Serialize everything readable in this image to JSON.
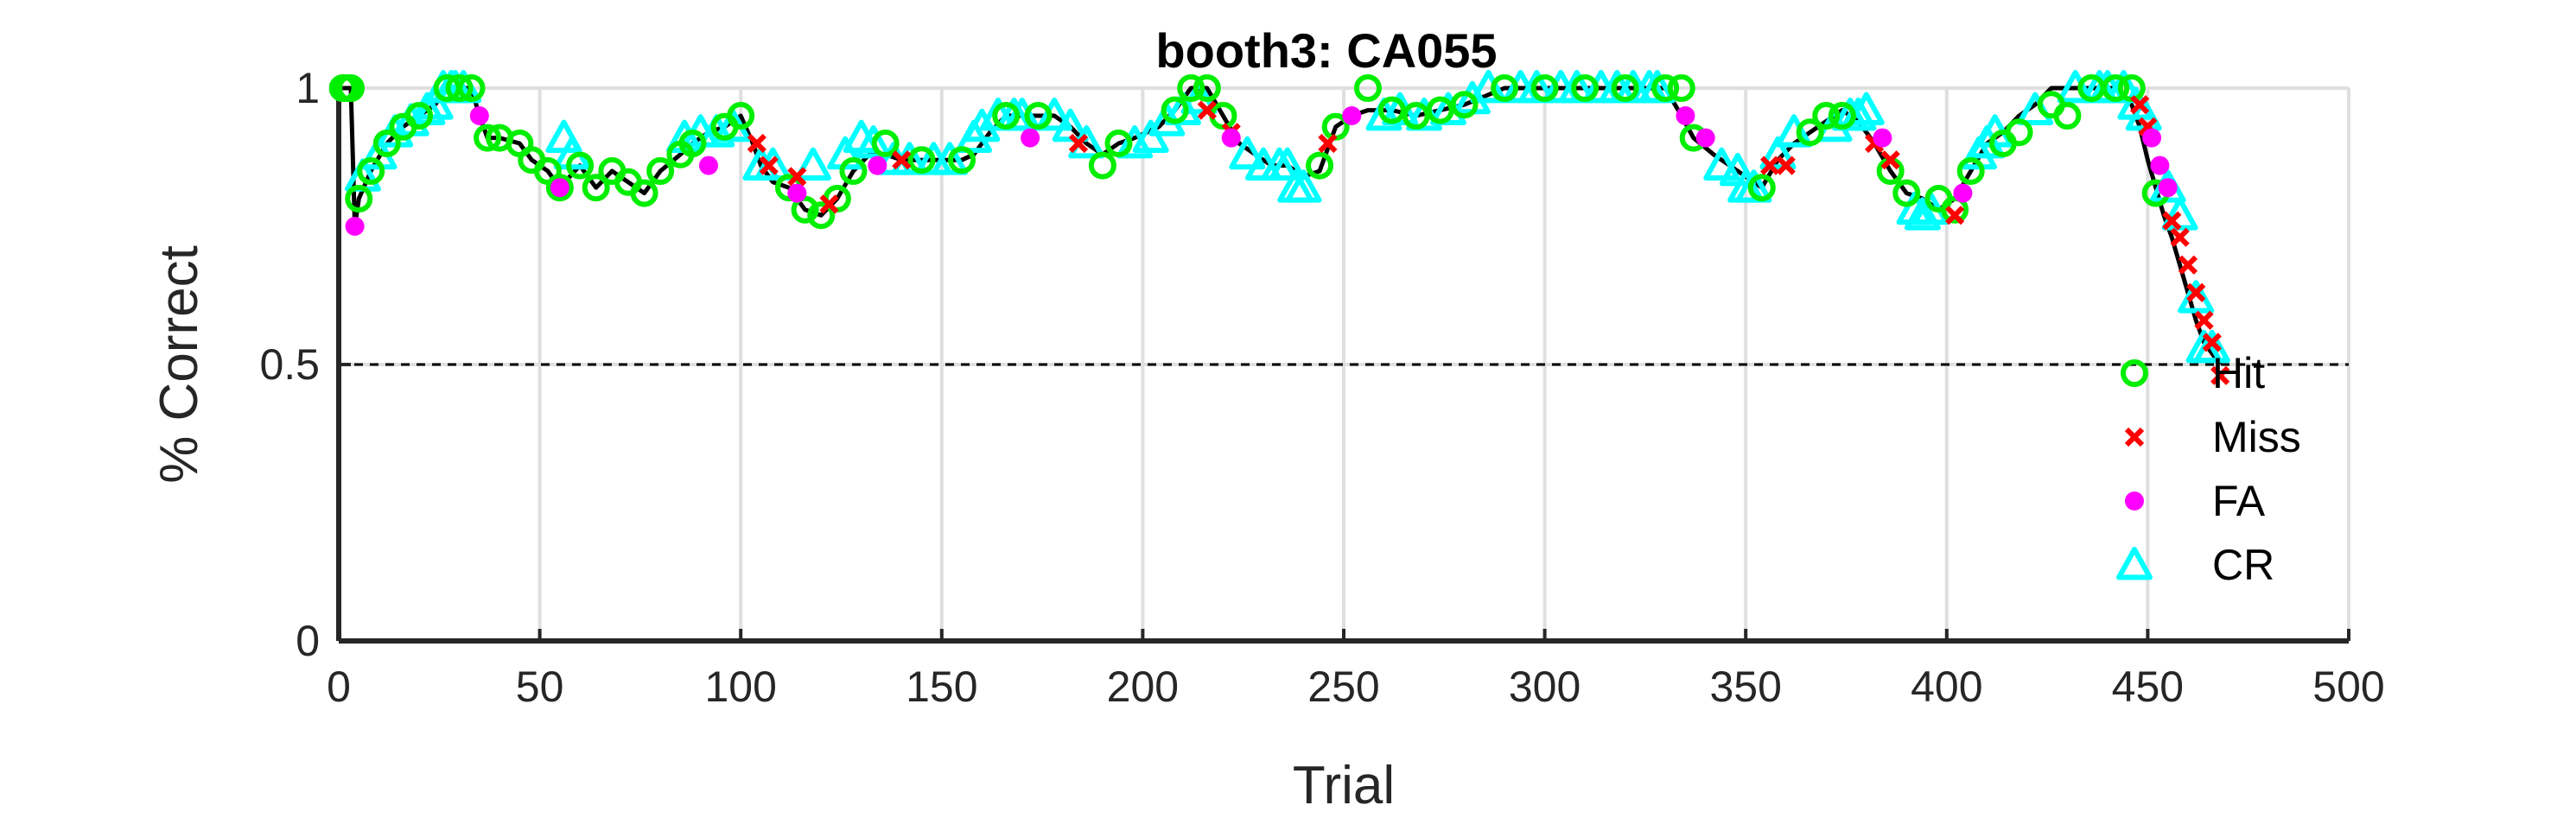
{
  "chart_data": {
    "type": "scatter",
    "title": "booth3: CA055",
    "xlabel": "Trial",
    "ylabel": "% Correct",
    "xlim": [
      0,
      500
    ],
    "ylim": [
      0,
      1
    ],
    "xticks": [
      0,
      50,
      100,
      150,
      200,
      250,
      300,
      350,
      400,
      450,
      500
    ],
    "xtick_labels": [
      "0",
      "50",
      "100",
      "150",
      "200",
      "250",
      "300",
      "350",
      "400",
      "450",
      "500"
    ],
    "yticks": [
      0,
      0.5,
      1
    ],
    "ytick_labels": [
      "0",
      "0.5",
      "1"
    ],
    "grid": true,
    "reference_line": {
      "y": 0.5,
      "style": "dashed"
    },
    "legend_position": "lower-right",
    "colors": {
      "Hit": "#00ee00",
      "Miss": "#ff0000",
      "FA": "#ff00ff",
      "CR": "#00ffff",
      "line": "#000000"
    },
    "line": {
      "x": [
        1,
        2,
        3,
        4,
        5,
        8,
        12,
        16,
        20,
        24,
        27,
        30,
        33,
        35,
        37,
        40,
        45,
        48,
        52,
        55,
        60,
        64,
        68,
        72,
        76,
        80,
        85,
        88,
        92,
        96,
        100,
        103,
        105,
        108,
        112,
        116,
        120,
        124,
        128,
        132,
        136,
        140,
        145,
        150,
        155,
        158,
        162,
        166,
        170,
        174,
        178,
        182,
        186,
        190,
        194,
        198,
        204,
        208,
        212,
        216,
        220,
        224,
        228,
        232,
        236,
        240,
        244,
        248,
        252,
        256,
        262,
        268,
        274,
        280,
        290,
        300,
        310,
        320,
        330,
        334,
        337,
        342,
        346,
        350,
        354,
        358,
        362,
        366,
        370,
        374,
        378,
        382,
        386,
        390,
        394,
        398,
        402,
        406,
        410,
        414,
        418,
        422,
        426,
        430,
        436,
        442,
        446,
        448,
        450,
        452,
        454,
        456,
        458,
        460,
        462,
        464,
        466,
        468
      ],
      "y": [
        1,
        1,
        1,
        0.75,
        0.8,
        0.85,
        0.9,
        0.93,
        0.95,
        0.97,
        1,
        1,
        1,
        0.95,
        0.91,
        0.91,
        0.9,
        0.87,
        0.85,
        0.82,
        0.86,
        0.82,
        0.85,
        0.83,
        0.81,
        0.85,
        0.88,
        0.9,
        0.92,
        0.93,
        0.95,
        0.9,
        0.86,
        0.83,
        0.82,
        0.78,
        0.77,
        0.8,
        0.85,
        0.88,
        0.88,
        0.87,
        0.87,
        0.87,
        0.87,
        0.88,
        0.92,
        0.95,
        0.95,
        0.95,
        0.95,
        0.93,
        0.9,
        0.88,
        0.9,
        0.91,
        0.93,
        0.96,
        1,
        1,
        0.95,
        0.9,
        0.88,
        0.86,
        0.86,
        0.84,
        0.85,
        0.93,
        0.95,
        0.96,
        0.96,
        0.95,
        0.96,
        0.97,
        1,
        1,
        1,
        1,
        1,
        0.95,
        0.91,
        0.88,
        0.86,
        0.84,
        0.82,
        0.87,
        0.9,
        0.92,
        0.94,
        0.96,
        0.94,
        0.9,
        0.85,
        0.81,
        0.8,
        0.78,
        0.8,
        0.85,
        0.9,
        0.92,
        0.95,
        0.97,
        1,
        1,
        1,
        1,
        0.97,
        0.93,
        0.87,
        0.82,
        0.77,
        0.73,
        0.68,
        0.63,
        0.58,
        0.54,
        0.52,
        0.5
      ]
    },
    "series": [
      {
        "name": "Hit",
        "marker": "circle",
        "x": [
          1,
          2,
          3,
          5,
          8,
          12,
          16,
          20,
          27,
          30,
          33,
          37,
          40,
          45,
          48,
          52,
          55,
          60,
          64,
          68,
          72,
          76,
          80,
          85,
          88,
          96,
          100,
          112,
          116,
          120,
          124,
          128,
          136,
          145,
          155,
          166,
          174,
          190,
          194,
          208,
          212,
          216,
          220,
          244,
          248,
          256,
          262,
          268,
          274,
          280,
          290,
          300,
          310,
          320,
          330,
          334,
          337,
          354,
          366,
          370,
          374,
          386,
          390,
          398,
          402,
          406,
          414,
          418,
          426,
          430,
          436,
          442,
          446,
          452
        ],
        "y": [
          1,
          1,
          1,
          0.8,
          0.85,
          0.9,
          0.93,
          0.95,
          1,
          1,
          1,
          0.91,
          0.91,
          0.9,
          0.87,
          0.85,
          0.82,
          0.86,
          0.82,
          0.85,
          0.83,
          0.81,
          0.85,
          0.88,
          0.9,
          0.93,
          0.95,
          0.82,
          0.78,
          0.77,
          0.8,
          0.85,
          0.9,
          0.87,
          0.87,
          0.95,
          0.95,
          0.86,
          0.9,
          0.96,
          1,
          1,
          0.95,
          0.86,
          0.93,
          1,
          0.96,
          0.95,
          0.96,
          0.97,
          1,
          1,
          1,
          1,
          1,
          1,
          0.91,
          0.82,
          0.92,
          0.95,
          0.95,
          0.85,
          0.81,
          0.8,
          0.78,
          0.85,
          0.9,
          0.92,
          0.97,
          0.95,
          1,
          1,
          1,
          0.81
        ]
      },
      {
        "name": "Miss",
        "marker": "x",
        "x": [
          104,
          107,
          114,
          122,
          140,
          184,
          216,
          222,
          246,
          356,
          360,
          382,
          386,
          402,
          448,
          450,
          456,
          458,
          460,
          462,
          464,
          466,
          468
        ],
        "y": [
          0.9,
          0.86,
          0.84,
          0.79,
          0.87,
          0.9,
          0.96,
          0.92,
          0.9,
          0.86,
          0.86,
          0.9,
          0.87,
          0.77,
          0.97,
          0.93,
          0.76,
          0.73,
          0.68,
          0.63,
          0.58,
          0.54,
          0.48
        ]
      },
      {
        "name": "FA",
        "marker": "dot",
        "x": [
          4,
          35,
          55,
          92,
          114,
          134,
          172,
          222,
          252,
          335,
          340,
          384,
          404,
          451,
          453,
          455
        ],
        "y": [
          0.75,
          0.95,
          0.82,
          0.86,
          0.81,
          0.86,
          0.91,
          0.91,
          0.95,
          0.95,
          0.91,
          0.91,
          0.81,
          0.91,
          0.86,
          0.82
        ],
        "note": ""
      },
      {
        "name": "CR",
        "marker": "triangle",
        "x": [
          6,
          10,
          14,
          18,
          22,
          24,
          26,
          28,
          29,
          31,
          56,
          58,
          86,
          90,
          94,
          98,
          105,
          108,
          118,
          126,
          130,
          133,
          138,
          142,
          148,
          152,
          158,
          160,
          164,
          168,
          170,
          178,
          182,
          186,
          198,
          202,
          206,
          210,
          214,
          226,
          230,
          234,
          236,
          238,
          240,
          260,
          264,
          270,
          276,
          282,
          286,
          294,
          298,
          304,
          308,
          314,
          318,
          322,
          326,
          328,
          344,
          348,
          350,
          352,
          358,
          362,
          372,
          376,
          378,
          380,
          392,
          394,
          396,
          408,
          410,
          412,
          422,
          432,
          438,
          440,
          444,
          447,
          449,
          455,
          458,
          462,
          464,
          466
        ],
        "y": [
          0.84,
          0.88,
          0.92,
          0.94,
          0.96,
          0.97,
          1,
          1,
          1,
          1,
          0.91,
          0.88,
          0.91,
          0.92,
          0.92,
          0.93,
          0.86,
          0.86,
          0.86,
          0.88,
          0.91,
          0.9,
          0.87,
          0.87,
          0.87,
          0.87,
          0.91,
          0.93,
          0.95,
          0.95,
          0.95,
          0.95,
          0.93,
          0.9,
          0.9,
          0.91,
          0.94,
          0.96,
          0.98,
          0.88,
          0.86,
          0.86,
          0.86,
          0.82,
          0.82,
          0.95,
          0.96,
          0.95,
          0.96,
          0.98,
          1,
          1,
          1,
          1,
          1,
          1,
          1,
          1,
          1,
          1,
          0.86,
          0.85,
          0.82,
          0.82,
          0.88,
          0.92,
          0.93,
          0.95,
          0.95,
          0.96,
          0.78,
          0.77,
          0.78,
          0.88,
          0.9,
          0.92,
          0.96,
          1,
          1,
          1,
          1,
          0.97,
          0.95,
          0.82,
          0.77,
          0.62,
          0.53,
          0.53
        ]
      }
    ]
  }
}
